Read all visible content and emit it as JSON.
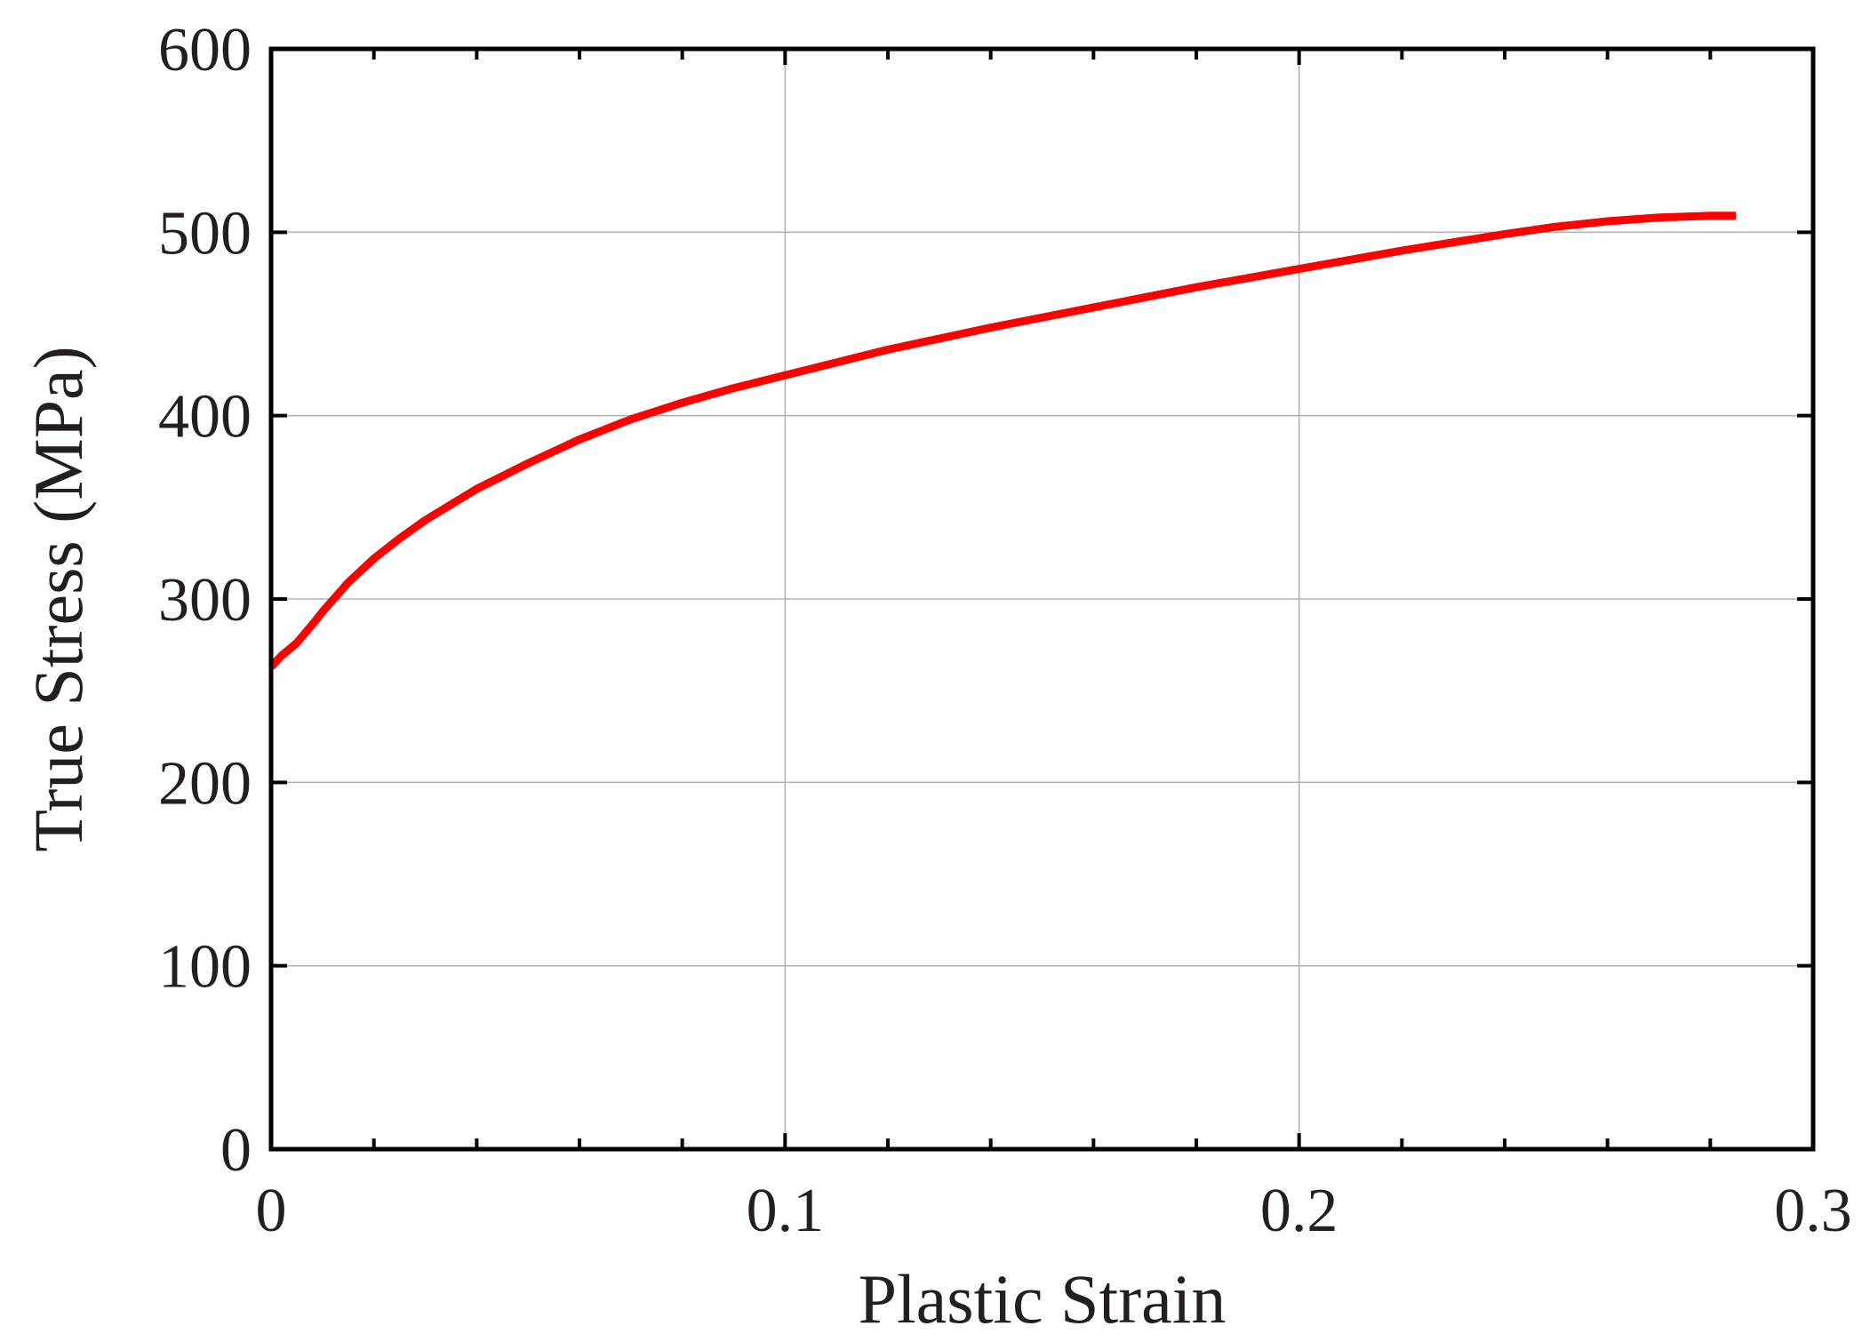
{
  "chart_data": {
    "type": "line",
    "title": "",
    "xlabel": "Plastic Strain",
    "ylabel": "True Stress (MPa)",
    "xlim": [
      0,
      0.3
    ],
    "ylim": [
      0,
      600
    ],
    "x_ticks": [
      "0",
      "0.1",
      "0.2",
      "0.3"
    ],
    "y_ticks": [
      "0",
      "100",
      "200",
      "300",
      "400",
      "500",
      "600"
    ],
    "grid": true,
    "legend": "none",
    "series": [
      {
        "color": "#ff0000",
        "x": [
          0,
          0.002,
          0.005,
          0.008,
          0.01,
          0.015,
          0.02,
          0.025,
          0.03,
          0.04,
          0.05,
          0.06,
          0.07,
          0.08,
          0.09,
          0.1,
          0.12,
          0.14,
          0.16,
          0.18,
          0.2,
          0.22,
          0.24,
          0.25,
          0.26,
          0.27,
          0.28,
          0.285
        ],
        "y": [
          263,
          269,
          276,
          286,
          293,
          309,
          322,
          333,
          343,
          360,
          374,
          387,
          398,
          407,
          415,
          422,
          436,
          448,
          459,
          470,
          480,
          490,
          499,
          503,
          506,
          508,
          509,
          509
        ]
      }
    ]
  }
}
